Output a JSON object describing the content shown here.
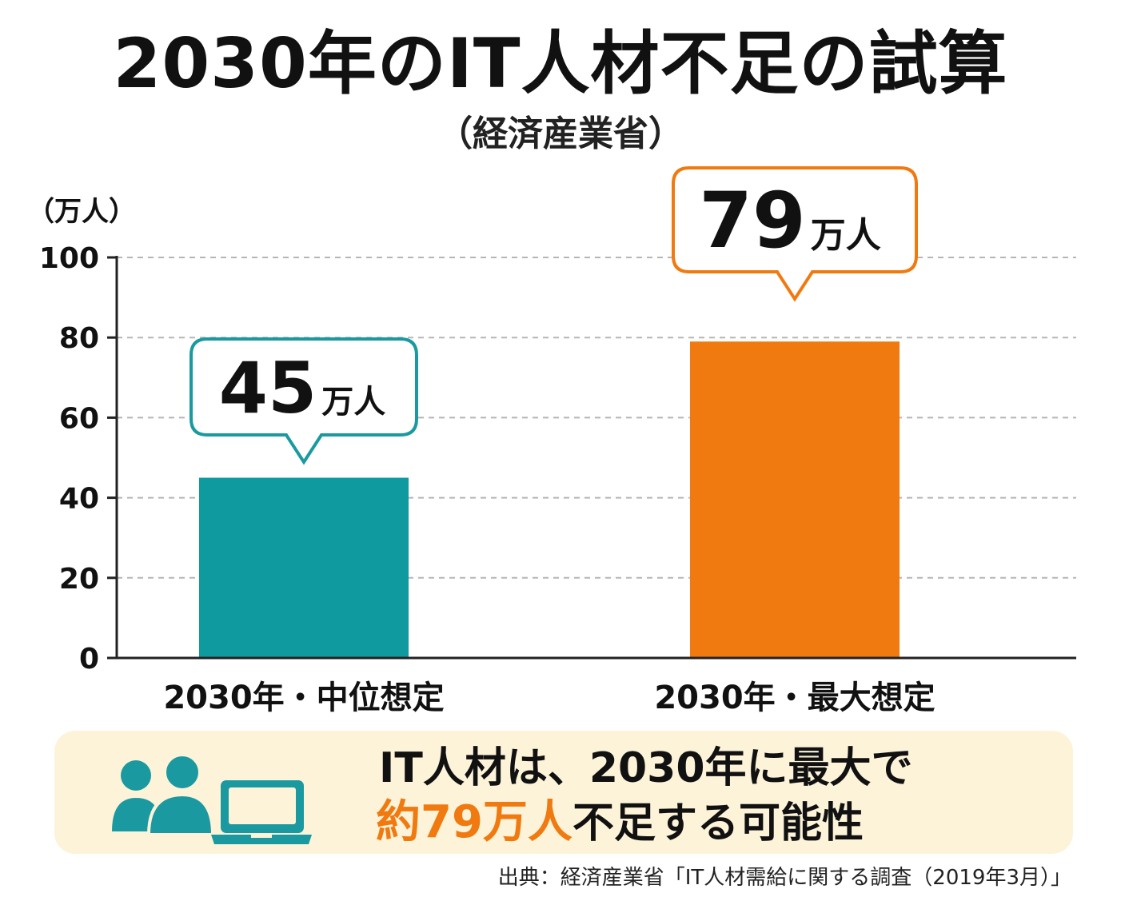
{
  "chart_data": {
    "type": "bar",
    "title": "2030年のIT人材不足の試算",
    "subtitle": "（経済産業省）",
    "ylabel": "（万人）",
    "ylim": [
      0,
      100
    ],
    "yticks": [
      0,
      20,
      40,
      60,
      80,
      100
    ],
    "grid": true,
    "categories": [
      "2030年・中位想定",
      "2030年・最大想定"
    ],
    "values": [
      45,
      79
    ],
    "colors": [
      "#0e9a9f",
      "#f07a10"
    ],
    "callouts": [
      {
        "number": "45",
        "unit": "万人",
        "color": "#1a9aa0"
      },
      {
        "number": "79",
        "unit": "万人",
        "color": "#f07a10"
      }
    ]
  },
  "summary": {
    "line1": "IT人材は、2030年に最大で",
    "line2_highlight": "約79万人",
    "line2_rest": "不足する可能性",
    "highlight_color": "#f07a10",
    "icons": [
      "people-icon",
      "laptop-icon"
    ],
    "icon_color": "#1a9aa0"
  },
  "source": "出典：経済産業省「IT人材需給に関する調査（2019年3月）」"
}
